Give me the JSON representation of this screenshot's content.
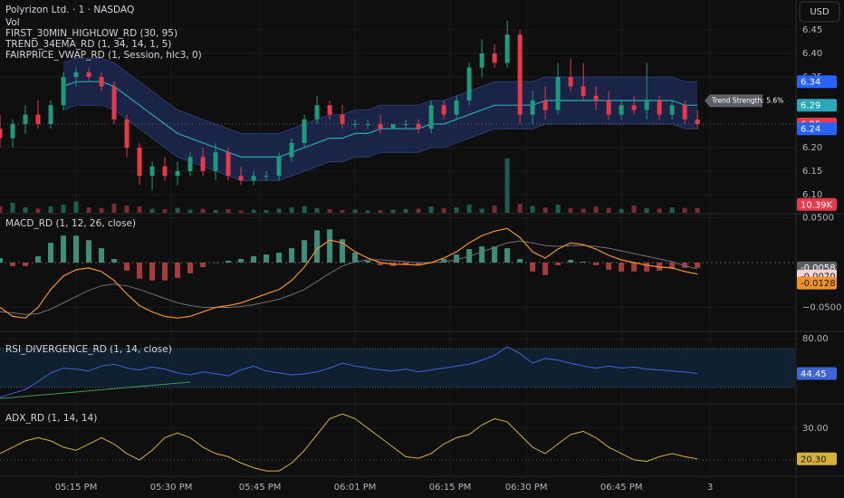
{
  "currency": "USD",
  "chart_data": [
    {
      "type": "candlestick",
      "title": "Polyrizon Ltd. · 1 · NASDAQ",
      "legend": [
        "Vol",
        "FIRST_30MIN_HIGHLOW_RD (30, 95)",
        "TREND_34EMA_RD (1, 34, 14, 1, 5)",
        "FAIRPRICE_VWAP_RD (1, Session, hlc3, 0)"
      ],
      "annotation": "Trend Strength: 5.6%",
      "xlim": [
        0,
        125.4
      ],
      "xticks": [
        {
          "value": 12,
          "label": "05:15 PM"
        },
        {
          "value": 27,
          "label": "05:30 PM"
        },
        {
          "value": 41,
          "label": "05:45 PM"
        },
        {
          "value": 56,
          "label": "06:01 PM"
        },
        {
          "value": 71,
          "label": "06:15 PM"
        },
        {
          "value": 83,
          "label": "06:30 PM"
        },
        {
          "value": 98,
          "label": "06:45 PM"
        },
        {
          "value": 112,
          "label": "3"
        }
      ],
      "ylim": [
        6.0615,
        6.5135
      ],
      "yticks": [
        6.45,
        {
          "value": 6.4,
          "label": "6.40"
        },
        6.35,
        {
          "value": 6.2,
          "label": "6.20"
        },
        6.15,
        {
          "value": 6.1,
          "label": "6.10"
        }
      ],
      "x": [
        0,
        2,
        4,
        6,
        8,
        10,
        12,
        14,
        16,
        18,
        20,
        22,
        24,
        26,
        28,
        30,
        32,
        34,
        36,
        38,
        40,
        42,
        44,
        46,
        48,
        50,
        52,
        54,
        56,
        58,
        60,
        62,
        64,
        66,
        68,
        70,
        72,
        74,
        76,
        78,
        80,
        82,
        84,
        86,
        88,
        90,
        92,
        94,
        96,
        98,
        100,
        102,
        104,
        106,
        108,
        110
      ],
      "open": [
        6.24,
        6.22,
        6.25,
        6.27,
        6.25,
        6.29,
        6.35,
        6.36,
        6.35,
        6.33,
        6.26,
        6.2,
        6.14,
        6.16,
        6.14,
        6.15,
        6.18,
        6.15,
        6.19,
        6.14,
        6.13,
        6.14,
        6.14,
        6.18,
        6.21,
        6.26,
        6.29,
        6.27,
        6.25,
        6.25,
        6.25,
        6.24,
        6.25,
        6.25,
        6.24,
        6.29,
        6.27,
        6.3,
        6.37,
        6.4,
        6.38,
        6.44,
        6.27,
        6.3,
        6.28,
        6.35,
        6.33,
        6.31,
        6.3,
        6.27,
        6.29,
        6.28,
        6.3,
        6.27,
        6.29,
        6.26
      ],
      "high": [
        6.27,
        6.26,
        6.29,
        6.3,
        6.3,
        6.36,
        6.37,
        6.37,
        6.36,
        6.34,
        6.27,
        6.21,
        6.17,
        6.18,
        6.17,
        6.19,
        6.2,
        6.21,
        6.2,
        6.16,
        6.15,
        6.15,
        6.19,
        6.22,
        6.27,
        6.31,
        6.3,
        6.29,
        6.26,
        6.26,
        6.27,
        6.25,
        6.26,
        6.26,
        6.3,
        6.3,
        6.31,
        6.38,
        6.43,
        6.42,
        6.47,
        6.45,
        6.32,
        6.33,
        6.38,
        6.39,
        6.38,
        6.33,
        6.32,
        6.3,
        6.31,
        6.38,
        6.31,
        6.3,
        6.3,
        6.28
      ],
      "low": [
        6.2,
        6.2,
        6.23,
        6.24,
        6.24,
        6.28,
        6.33,
        6.34,
        6.32,
        6.25,
        6.18,
        6.12,
        6.11,
        6.13,
        6.12,
        6.14,
        6.14,
        6.13,
        6.13,
        6.12,
        6.12,
        6.13,
        6.13,
        6.17,
        6.2,
        6.25,
        6.26,
        6.24,
        6.24,
        6.24,
        6.23,
        6.24,
        6.24,
        6.23,
        6.23,
        6.26,
        6.26,
        6.29,
        6.35,
        6.37,
        6.37,
        6.25,
        6.25,
        6.26,
        6.27,
        6.32,
        6.3,
        6.28,
        6.26,
        6.26,
        6.27,
        6.26,
        6.26,
        6.26,
        6.25,
        6.24
      ],
      "close": [
        6.22,
        6.25,
        6.27,
        6.25,
        6.29,
        6.35,
        6.36,
        6.35,
        6.33,
        6.26,
        6.2,
        6.14,
        6.16,
        6.14,
        6.15,
        6.18,
        6.15,
        6.19,
        6.14,
        6.13,
        6.14,
        6.14,
        6.18,
        6.21,
        6.26,
        6.29,
        6.27,
        6.25,
        6.25,
        6.25,
        6.24,
        6.25,
        6.25,
        6.24,
        6.29,
        6.27,
        6.3,
        6.37,
        6.4,
        6.38,
        6.44,
        6.27,
        6.3,
        6.28,
        6.35,
        6.33,
        6.31,
        6.3,
        6.27,
        6.29,
        6.28,
        6.3,
        6.27,
        6.29,
        6.26,
        6.25
      ],
      "ema": [
        null,
        null,
        null,
        null,
        null,
        6.33,
        6.34,
        6.34,
        6.34,
        6.33,
        6.31,
        6.29,
        6.27,
        6.25,
        6.23,
        6.22,
        6.21,
        6.2,
        6.19,
        6.18,
        6.18,
        6.18,
        6.18,
        6.19,
        6.2,
        6.21,
        6.22,
        6.22,
        6.23,
        6.23,
        6.24,
        6.24,
        6.24,
        6.24,
        6.25,
        6.25,
        6.26,
        6.27,
        6.28,
        6.29,
        6.29,
        6.29,
        6.29,
        6.3,
        6.3,
        6.3,
        6.3,
        6.3,
        6.3,
        6.3,
        6.3,
        6.3,
        6.3,
        6.3,
        6.29,
        6.29
      ],
      "upper_band": [
        null,
        null,
        null,
        null,
        null,
        6.38,
        6.39,
        6.39,
        6.39,
        6.38,
        6.36,
        6.34,
        6.32,
        6.3,
        6.28,
        6.27,
        6.26,
        6.25,
        6.24,
        6.23,
        6.23,
        6.23,
        6.23,
        6.24,
        6.25,
        6.26,
        6.27,
        6.27,
        6.28,
        6.28,
        6.29,
        6.29,
        6.29,
        6.29,
        6.3,
        6.3,
        6.31,
        6.32,
        6.33,
        6.34,
        6.34,
        6.34,
        6.34,
        6.35,
        6.35,
        6.35,
        6.35,
        6.35,
        6.35,
        6.35,
        6.35,
        6.35,
        6.35,
        6.35,
        6.34,
        6.34
      ],
      "lower_band": [
        null,
        null,
        null,
        null,
        null,
        6.28,
        6.29,
        6.29,
        6.29,
        6.28,
        6.26,
        6.24,
        6.22,
        6.2,
        6.18,
        6.17,
        6.16,
        6.15,
        6.14,
        6.13,
        6.13,
        6.13,
        6.13,
        6.14,
        6.15,
        6.16,
        6.17,
        6.17,
        6.18,
        6.18,
        6.19,
        6.19,
        6.19,
        6.19,
        6.2,
        6.2,
        6.21,
        6.22,
        6.23,
        6.24,
        6.24,
        6.24,
        6.24,
        6.25,
        6.25,
        6.25,
        6.25,
        6.25,
        6.25,
        6.25,
        6.25,
        6.25,
        6.25,
        6.25,
        6.24,
        6.24
      ],
      "volume": [
        15000,
        22000,
        12000,
        9000,
        14000,
        18000,
        25000,
        12000,
        10000,
        20000,
        16000,
        14000,
        9000,
        8000,
        11000,
        7000,
        9000,
        6000,
        8000,
        5000,
        7000,
        6000,
        9000,
        12000,
        15000,
        10000,
        8000,
        6000,
        7000,
        5000,
        6000,
        7000,
        8000,
        9000,
        14000,
        10000,
        12000,
        18000,
        9000,
        16000,
        120000,
        20000,
        15000,
        12000,
        18000,
        10000,
        9000,
        14000,
        11000,
        8000,
        16000,
        10000,
        9000,
        12000,
        11000,
        10390
      ],
      "volume_lim": [
        0,
        470000
      ],
      "volume_last_label": "10.39K",
      "color_up": "#1f9a7e",
      "color_down": "#e8394a",
      "ema_color": "#2aa8b8",
      "band_color": "#1c2850",
      "tag_band_color": "#2962ff"
    },
    {
      "type": "macd",
      "title": "MACD_RD (1, 12, 26, close)",
      "ylim": [
        -0.0758,
        0.0535
      ],
      "yticks": [
        {
          "value": 0.05,
          "label": "0.0500"
        },
        {
          "value": -0.05,
          "label": "−0.0500"
        }
      ],
      "zero_line": 0,
      "histogram": [
        0.005,
        -0.004,
        -0.004,
        0.007,
        0.022,
        0.03,
        0.03,
        0.025,
        0.016,
        0.004,
        -0.009,
        -0.018,
        -0.02,
        -0.02,
        -0.017,
        -0.012,
        -0.005,
        0.0,
        0.002,
        0.004,
        0.007,
        0.009,
        0.011,
        0.016,
        0.025,
        0.036,
        0.037,
        0.026,
        0.011,
        0.002,
        -0.003,
        -0.004,
        -0.003,
        -0.003,
        0.0,
        0.004,
        0.009,
        0.015,
        0.018,
        0.018,
        0.016,
        0.004,
        -0.01,
        -0.014,
        -0.003,
        0.003,
        0.001,
        -0.003,
        -0.008,
        -0.01,
        -0.01,
        -0.01,
        -0.009,
        -0.007,
        -0.006,
        -0.0058
      ],
      "macd": [
        -0.05,
        -0.06,
        -0.062,
        -0.05,
        -0.03,
        -0.015,
        -0.008,
        -0.006,
        -0.01,
        -0.02,
        -0.035,
        -0.048,
        -0.055,
        -0.06,
        -0.062,
        -0.06,
        -0.055,
        -0.05,
        -0.048,
        -0.045,
        -0.04,
        -0.035,
        -0.03,
        -0.02,
        -0.005,
        0.015,
        0.025,
        0.022,
        0.012,
        0.005,
        0.0,
        -0.002,
        -0.002,
        -0.003,
        0.0,
        0.005,
        0.012,
        0.022,
        0.03,
        0.035,
        0.038,
        0.028,
        0.012,
        0.005,
        0.015,
        0.022,
        0.02,
        0.015,
        0.008,
        0.003,
        0.0,
        -0.003,
        -0.005,
        -0.006,
        -0.01,
        -0.0128
      ],
      "signal": [
        -0.055,
        -0.056,
        -0.058,
        -0.057,
        -0.052,
        -0.045,
        -0.038,
        -0.031,
        -0.026,
        -0.024,
        -0.026,
        -0.03,
        -0.035,
        -0.04,
        -0.045,
        -0.048,
        -0.05,
        -0.05,
        -0.05,
        -0.049,
        -0.047,
        -0.044,
        -0.041,
        -0.036,
        -0.03,
        -0.021,
        -0.012,
        -0.004,
        0.001,
        0.003,
        0.003,
        0.002,
        0.001,
        0.0,
        0.0,
        0.001,
        0.003,
        0.007,
        0.012,
        0.017,
        0.022,
        0.024,
        0.022,
        0.019,
        0.018,
        0.019,
        0.019,
        0.018,
        0.016,
        0.013,
        0.01,
        0.007,
        0.004,
        0.001,
        -0.004,
        -0.007
      ],
      "signal_last_label": "-0.0070",
      "macd_color": "#f0922b",
      "signal_color": "#6d7078",
      "hist_pos_color": "#3d8f7c",
      "hist_neg_color": "#a83c3c"
    },
    {
      "type": "rsi",
      "title": "RSI_DIVERGENCE_RD (1, 14, close)",
      "ylim": [
        14.2,
        86.7
      ],
      "yticks": [
        {
          "value": 80,
          "label": "80.00"
        }
      ],
      "band": [
        30,
        70
      ],
      "values": [
        20,
        24,
        28,
        36,
        45,
        50,
        49,
        47,
        52,
        54,
        50,
        48,
        51,
        49,
        45,
        43,
        46,
        44,
        42,
        48,
        52,
        47,
        45,
        43,
        44,
        46,
        50,
        55,
        52,
        50,
        48,
        47,
        49,
        46,
        48,
        50,
        52,
        54,
        58,
        63,
        72,
        65,
        55,
        60,
        58,
        55,
        52,
        50,
        52,
        50,
        51,
        49,
        48,
        47,
        46,
        44.45
      ],
      "divergence": {
        "x": [
          0,
          30
        ],
        "values": [
          18.8,
          35.6
        ],
        "color": "#3f9a55"
      },
      "color": "#3f63d8",
      "band_color": "#0f2030"
    },
    {
      "type": "line",
      "title": "ADX_RD (1, 14, 14)",
      "ylim": [
        15.1,
        37.4
      ],
      "yticks": [
        {
          "value": 30,
          "label": "30.00"
        }
      ],
      "hline": 20,
      "values": [
        22,
        24,
        26,
        27,
        26,
        24,
        23,
        25,
        27,
        25,
        22,
        20,
        23,
        27,
        28.5,
        27,
        24,
        22,
        21,
        19,
        17.5,
        16.5,
        16.5,
        19,
        23,
        28,
        33,
        34.5,
        33,
        30,
        27,
        24,
        21,
        20.5,
        22,
        25,
        27,
        28,
        31,
        33,
        32,
        28,
        24,
        22,
        25,
        28,
        29,
        27,
        24,
        22,
        20,
        19.5,
        21,
        22,
        21,
        20.3
      ],
      "last_label": "20.30",
      "color": "#d4b13a"
    }
  ]
}
